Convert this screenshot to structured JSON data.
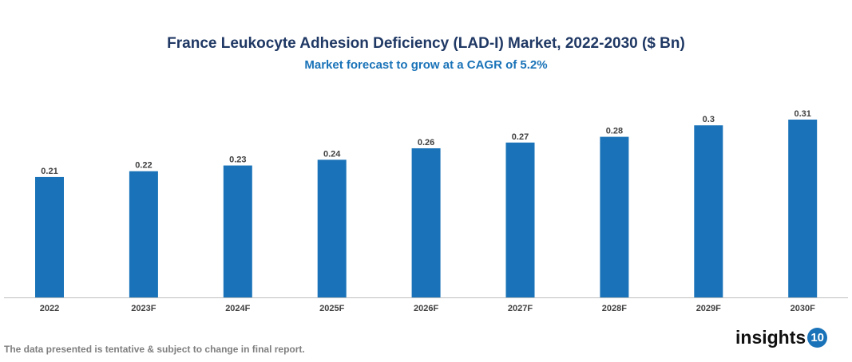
{
  "chart_data": {
    "type": "bar",
    "title": "France Leukocyte Adhesion Deficiency (LAD-I) Market, 2022-2030 ($ Bn)",
    "subtitle": "Market forecast to grow at a CAGR of 5.2%",
    "categories": [
      "2022",
      "2023F",
      "2024F",
      "2025F",
      "2026F",
      "2027F",
      "2028F",
      "2029F",
      "2030F"
    ],
    "values": [
      0.21,
      0.22,
      0.23,
      0.24,
      0.26,
      0.27,
      0.28,
      0.3,
      0.31
    ],
    "labels": [
      "0.21",
      "0.22",
      "0.23",
      "0.24",
      "0.26",
      "0.27",
      "0.28",
      "0.3",
      "0.31"
    ],
    "xlabel": "",
    "ylabel": "",
    "ylim": [
      0,
      0.31
    ],
    "grid": false,
    "bar_color": "#1a73b8"
  },
  "footer": "The data presented is tentative & subject to change in final report.",
  "logo": {
    "text": "insights",
    "badge": "10"
  }
}
